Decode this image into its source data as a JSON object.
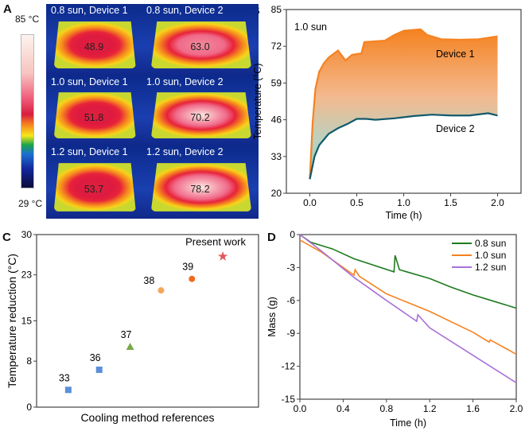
{
  "panels": {
    "a": "A",
    "b": "B",
    "c": "C",
    "d": "D"
  },
  "panel_a": {
    "colorbar_max": "85 °C",
    "colorbar_min": "29 °C",
    "cells": [
      {
        "title": "0.8 sun, Device 1",
        "value": "48.9",
        "intensity": 0.35
      },
      {
        "title": "0.8 sun, Device 2",
        "value": "63.0",
        "intensity": 0.6
      },
      {
        "title": "1.0 sun, Device 1",
        "value": "51.8",
        "intensity": 0.4
      },
      {
        "title": "1.0 sun, Device 2",
        "value": "70.2",
        "intensity": 0.8
      },
      {
        "title": "1.2 sun, Device 1",
        "value": "53.7",
        "intensity": 0.45
      },
      {
        "title": "1.2 sun, Device 2",
        "value": "78.2",
        "intensity": 0.95
      }
    ]
  },
  "chart_data": [
    {
      "id": "B",
      "type": "area",
      "annotation": "1.0 sun",
      "xlabel": "Time (h)",
      "ylabel": "Temperature (°C)",
      "xlim": [
        -0.25,
        2.25
      ],
      "ylim": [
        20,
        85
      ],
      "xticks": [
        0.0,
        0.5,
        1.0,
        1.5,
        2.0
      ],
      "xtick_labels": [
        "0.0",
        "0.5",
        "1.0",
        "1.5",
        "2.0"
      ],
      "yticks": [
        20,
        33,
        46,
        59,
        72,
        85
      ],
      "ytick_labels": [
        "20",
        "33",
        "46",
        "59",
        "72",
        "85"
      ],
      "series": [
        {
          "name": "Device 1",
          "color": "#f58220",
          "points": [
            [
              0,
              25
            ],
            [
              0.03,
              45
            ],
            [
              0.06,
              57
            ],
            [
              0.1,
              63
            ],
            [
              0.15,
              66
            ],
            [
              0.2,
              68
            ],
            [
              0.3,
              70.5
            ],
            [
              0.38,
              67
            ],
            [
              0.45,
              69
            ],
            [
              0.55,
              69.5
            ],
            [
              0.58,
              73.5
            ],
            [
              0.8,
              74
            ],
            [
              0.9,
              76
            ],
            [
              1.0,
              77.5
            ],
            [
              1.18,
              78
            ],
            [
              1.25,
              76
            ],
            [
              1.4,
              74.5
            ],
            [
              1.6,
              74.3
            ],
            [
              1.8,
              74.5
            ],
            [
              2.0,
              75.5
            ]
          ]
        },
        {
          "name": "Device 2",
          "color": "#11596b",
          "points": [
            [
              0,
              25
            ],
            [
              0.05,
              33
            ],
            [
              0.1,
              37
            ],
            [
              0.2,
              41
            ],
            [
              0.3,
              43
            ],
            [
              0.4,
              44.5
            ],
            [
              0.5,
              46.3
            ],
            [
              0.6,
              46.3
            ],
            [
              0.7,
              46
            ],
            [
              0.9,
              46.5
            ],
            [
              1.1,
              47.3
            ],
            [
              1.3,
              47.8
            ],
            [
              1.5,
              47.5
            ],
            [
              1.7,
              47.5
            ],
            [
              1.9,
              48.3
            ],
            [
              2.0,
              47.5
            ]
          ]
        }
      ]
    },
    {
      "id": "C",
      "type": "scatter",
      "xlabel": "Cooling method references",
      "ylabel": "Temperature reduction (°C)",
      "ylim": [
        0,
        30
      ],
      "yticks": [
        0,
        8,
        15,
        23,
        30
      ],
      "ytick_labels": [
        "0",
        "8",
        "15",
        "23",
        "30"
      ],
      "xlim": [
        0,
        7
      ],
      "points": [
        {
          "label": "33",
          "x": 1,
          "y": 3,
          "marker": "square",
          "color": "#5b8fd8"
        },
        {
          "label": "36",
          "x": 2,
          "y": 6.5,
          "marker": "square",
          "color": "#5b8fd8"
        },
        {
          "label": "37",
          "x": 3,
          "y": 10.5,
          "marker": "triangle",
          "color": "#7aa94a"
        },
        {
          "label": "38",
          "x": 4,
          "y": 20.3,
          "marker": "circle",
          "color": "#f5a65b"
        },
        {
          "label": "39",
          "x": 5,
          "y": 22.3,
          "marker": "circle",
          "color": "#ef6a1f"
        },
        {
          "label": "Present work",
          "x": 6,
          "y": 26.2,
          "marker": "star",
          "color": "#e05a5a"
        }
      ]
    },
    {
      "id": "D",
      "type": "line",
      "xlabel": "Time (h)",
      "ylabel": "Mass (g)",
      "xlim": [
        0,
        2
      ],
      "ylim": [
        -15,
        0
      ],
      "xticks": [
        0,
        0.4,
        0.8,
        1.2,
        1.6,
        2.0
      ],
      "xtick_labels": [
        "0.0",
        "0.4",
        "0.8",
        "1.2",
        "1.6",
        "2.0"
      ],
      "yticks": [
        0,
        -3,
        -6,
        -9,
        -12,
        -15
      ],
      "ytick_labels": [
        "0",
        "-3",
        "-6",
        "-9",
        "-12",
        "-15"
      ],
      "legend": "top-right",
      "series": [
        {
          "name": "0.8 sun",
          "color": "#1e7a1e",
          "points": [
            [
              0,
              0
            ],
            [
              0.1,
              -0.7
            ],
            [
              0.3,
              -1.3
            ],
            [
              0.5,
              -2.2
            ],
            [
              0.87,
              -3.4
            ],
            [
              0.88,
              -1.9
            ],
            [
              0.92,
              -3.2
            ],
            [
              1.2,
              -4
            ],
            [
              1.4,
              -4.8
            ],
            [
              1.6,
              -5.5
            ],
            [
              1.8,
              -6.1
            ],
            [
              2.0,
              -6.7
            ]
          ]
        },
        {
          "name": "1.0 sun",
          "color": "#f58220",
          "points": [
            [
              0,
              -0.5
            ],
            [
              0.2,
              -1.6
            ],
            [
              0.5,
              -3.7
            ],
            [
              0.51,
              -3.2
            ],
            [
              0.55,
              -3.8
            ],
            [
              0.8,
              -5.4
            ],
            [
              1.2,
              -7
            ],
            [
              1.6,
              -8.9
            ],
            [
              1.75,
              -9.8
            ],
            [
              1.76,
              -9.6
            ],
            [
              2.0,
              -10.9
            ]
          ]
        },
        {
          "name": "1.2 sun",
          "color": "#a870d8",
          "points": [
            [
              0,
              0
            ],
            [
              0.2,
              -1.5
            ],
            [
              0.5,
              -3.9
            ],
            [
              0.8,
              -6
            ],
            [
              1.08,
              -7.9
            ],
            [
              1.09,
              -7.3
            ],
            [
              1.2,
              -8.5
            ],
            [
              1.6,
              -11
            ],
            [
              2.0,
              -13.5
            ]
          ]
        }
      ]
    }
  ]
}
